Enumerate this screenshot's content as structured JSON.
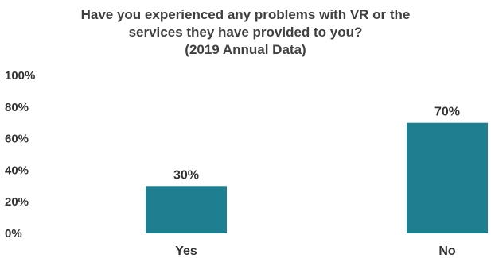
{
  "chart_data": {
    "type": "bar",
    "title_lines": [
      "Have you experienced any problems with VR or the",
      "services they have provided to you?",
      "(2019 Annual Data)"
    ],
    "categories": [
      "Yes",
      "No"
    ],
    "values": [
      30,
      70
    ],
    "value_labels": [
      "30%",
      "70%"
    ],
    "ylim": [
      0,
      100
    ],
    "yticks": [
      "0%",
      "20%",
      "40%",
      "60%",
      "80%",
      "100%"
    ],
    "grid": false,
    "legend": "none",
    "bar_color": "#1e7f91"
  }
}
